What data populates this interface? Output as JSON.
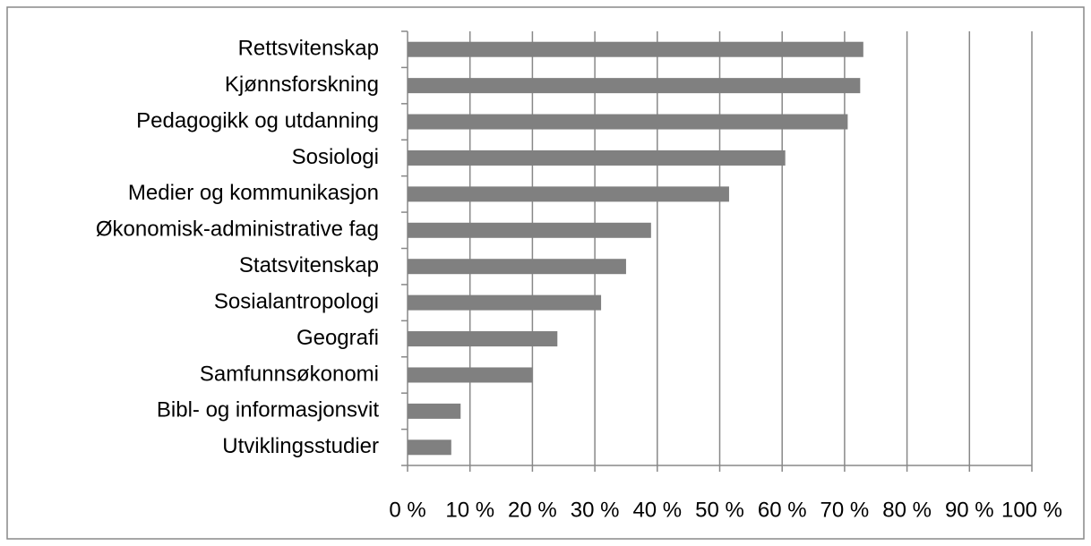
{
  "chart_data": {
    "type": "bar",
    "orientation": "horizontal",
    "categories": [
      "Rettsvitenskap",
      "Kjønnsforskning",
      "Pedagogikk og utdanning",
      "Sosiologi",
      "Medier og kommunikasjon",
      "Økonomisk-administrative fag",
      "Statsvitenskap",
      "Sosialantropologi",
      "Geografi",
      "Samfunnsøkonomi",
      "Bibl- og informasjonsvit",
      "Utviklingsstudier"
    ],
    "values": [
      73,
      72.5,
      70.5,
      60.5,
      51.5,
      39,
      35,
      31,
      24,
      20,
      8.5,
      7
    ],
    "color": "#808080",
    "xlim": [
      0,
      100
    ],
    "xticks": [
      {
        "value": 0,
        "label": "0 %"
      },
      {
        "value": 10,
        "label": "10 %"
      },
      {
        "value": 20,
        "label": "20 %"
      },
      {
        "value": 30,
        "label": "30 %"
      },
      {
        "value": 40,
        "label": "40 %"
      },
      {
        "value": 50,
        "label": "50 %"
      },
      {
        "value": 60,
        "label": "60 %"
      },
      {
        "value": 70,
        "label": "70 %"
      },
      {
        "value": 80,
        "label": "80 %"
      },
      {
        "value": 90,
        "label": "90 %"
      },
      {
        "value": 100,
        "label": "100 %"
      }
    ],
    "grid": true
  }
}
